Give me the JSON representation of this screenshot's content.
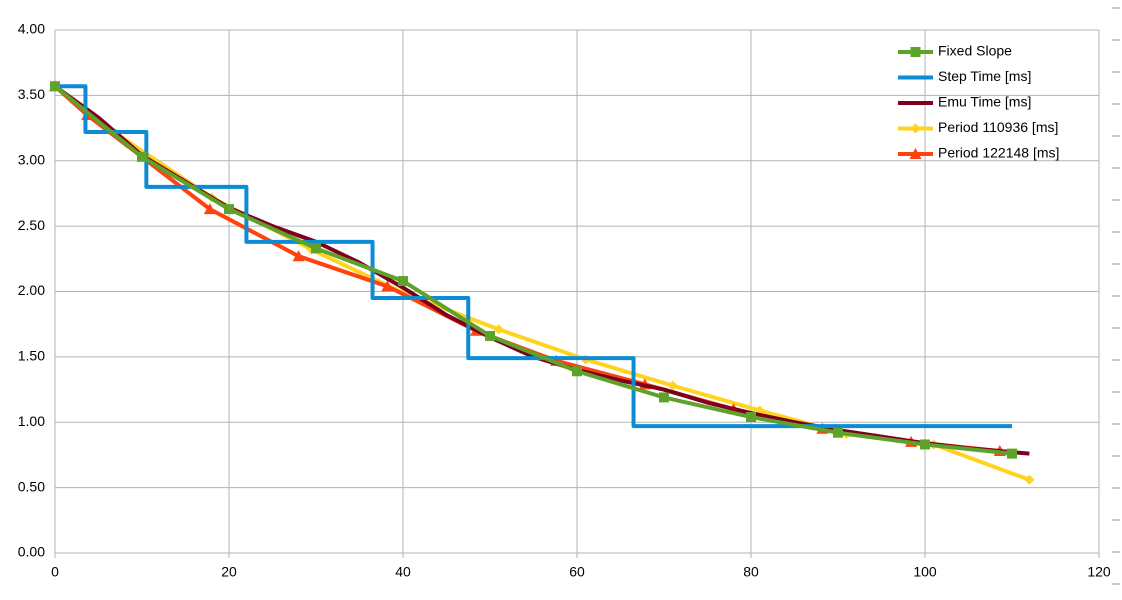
{
  "chart_data": {
    "type": "line",
    "xlim": [
      0,
      120
    ],
    "xticks": [
      0,
      20,
      40,
      60,
      80,
      100,
      120
    ],
    "ylim": [
      0,
      4
    ],
    "yticks": [
      {
        "value": 0,
        "label": "0.00"
      },
      {
        "value": 0.5,
        "label": "0.50"
      },
      {
        "value": 1,
        "label": "1.00"
      },
      {
        "value": 1.5,
        "label": "1.50"
      },
      {
        "value": 2,
        "label": "2.00"
      },
      {
        "value": 2.5,
        "label": "2.50"
      },
      {
        "value": 3,
        "label": "3.00"
      },
      {
        "value": 3.5,
        "label": "3.50"
      },
      {
        "value": 4,
        "label": "4.00"
      }
    ],
    "grid": true,
    "legend": "top-right",
    "series": [
      {
        "name": "Fixed Slope",
        "color": "#5ea22a",
        "marker": "square",
        "x": [
          0,
          10,
          20,
          30,
          40,
          50,
          60,
          70,
          80,
          90,
          100,
          110
        ],
        "values": [
          3.57,
          3.03,
          2.63,
          2.33,
          2.08,
          1.66,
          1.39,
          1.19,
          1.04,
          0.92,
          0.83,
          0.76
        ]
      },
      {
        "name": "Step Time [ms]",
        "color": "#0d8bd5",
        "marker": "none",
        "x": [
          0,
          3.5,
          3.5,
          10.5,
          10.5,
          22,
          22,
          36.5,
          36.5,
          47.5,
          47.5,
          66.5,
          66.5,
          110
        ],
        "values": [
          3.57,
          3.57,
          3.22,
          3.22,
          2.8,
          2.8,
          2.38,
          2.38,
          1.95,
          1.95,
          1.49,
          1.49,
          0.97,
          0.97
        ]
      },
      {
        "name": "Emu Time [ms]",
        "color": "#7e0021",
        "marker": "none",
        "x": [
          0,
          5,
          10,
          15,
          20,
          25,
          30,
          35,
          40,
          45,
          50,
          55,
          60,
          65,
          70,
          75,
          80,
          85,
          90,
          95,
          100,
          105,
          112
        ],
        "values": [
          3.57,
          3.33,
          3.04,
          2.84,
          2.64,
          2.5,
          2.38,
          2.22,
          2.03,
          1.82,
          1.65,
          1.5,
          1.4,
          1.32,
          1.25,
          1.15,
          1.07,
          1,
          0.94,
          0.89,
          0.84,
          0.8,
          0.76
        ]
      },
      {
        "name": "Period 110936 [ms]",
        "color": "#ffd320",
        "marker": "diamond",
        "x": [
          0,
          7,
          18,
          29.5,
          40,
          51,
          61,
          71,
          81,
          91,
          101,
          112
        ],
        "values": [
          3.57,
          3.21,
          2.72,
          2.32,
          1.99,
          1.71,
          1.48,
          1.28,
          1.09,
          0.91,
          0.83,
          0.56
        ]
      },
      {
        "name": "Period 122148 [ms]",
        "color": "#ff420e",
        "marker": "triangle",
        "x": [
          0,
          3.7,
          17.8,
          28,
          38.2,
          48.4,
          57.6,
          67.8,
          78,
          88.2,
          98.4,
          108.6
        ],
        "values": [
          3.57,
          3.35,
          2.63,
          2.27,
          2.04,
          1.7,
          1.47,
          1.29,
          1.1,
          0.95,
          0.85,
          0.78
        ]
      }
    ]
  }
}
